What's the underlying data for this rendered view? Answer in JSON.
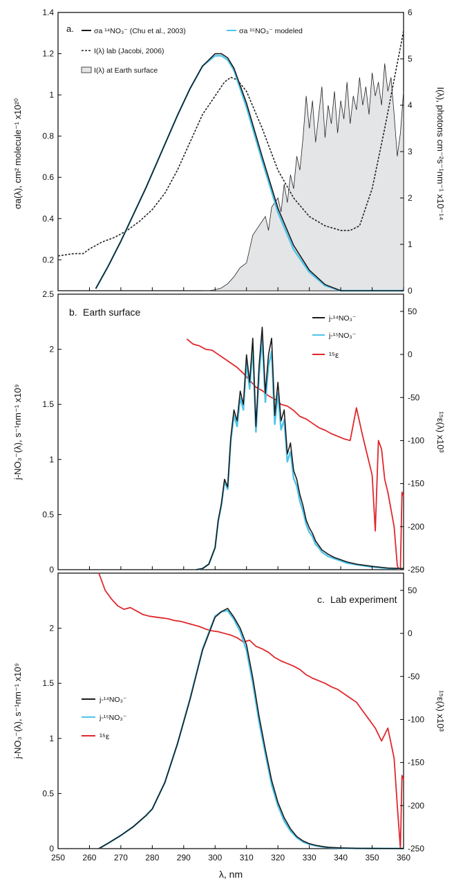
{
  "figure": {
    "xlabel": "λ, nm",
    "xticks": [
      "250",
      "260",
      "270",
      "280",
      "290",
      "300",
      "310",
      "320",
      "330",
      "340",
      "350",
      "360"
    ]
  },
  "colors": {
    "n14": "#1b1b1b",
    "n15": "#4fc3e8",
    "eps": "#e0262b",
    "lab": "#222222",
    "surface_fill": "#e4e5e7"
  },
  "chart_data": [
    {
      "type": "line",
      "panel_label": "a.",
      "xlim": [
        250,
        360
      ],
      "ylim_left": [
        0.05,
        1.4
      ],
      "ylim_right": [
        0,
        6
      ],
      "ylabel_left": "σa(λ), cm² molecule⁻¹ x10²⁰",
      "ylabel_right": "I(λ), photons cm⁻²s⁻¹nm⁻¹ x10⁻¹⁴",
      "yticks_left": [
        "0.2",
        "0.4",
        "0.6",
        "0.8",
        "1",
        "1.2",
        "1.4"
      ],
      "yticks_right": [
        "0",
        "1",
        "2",
        "3",
        "4",
        "5",
        "6"
      ],
      "legend": {
        "sigma14": "σa ¹⁴NO₃⁻ (Chu et al., 2003)",
        "sigma15": "σa ¹⁵NO₃⁻ modeled",
        "ilab": "I(λ) lab (Jacobi, 2006)",
        "isurf": "I(λ) at Earth surface"
      },
      "series": [
        {
          "name": "σa ¹⁴NO₃⁻ (Chu et al., 2003)",
          "axis": "left",
          "x": [
            262,
            266,
            270,
            274,
            278,
            280,
            284,
            288,
            292,
            296,
            300,
            302,
            304,
            306,
            310,
            315,
            320,
            325,
            330,
            335,
            340,
            345,
            350,
            355,
            360
          ],
          "y": [
            0.06,
            0.17,
            0.29,
            0.42,
            0.55,
            0.62,
            0.76,
            0.9,
            1.03,
            1.14,
            1.2,
            1.2,
            1.18,
            1.13,
            0.96,
            0.7,
            0.45,
            0.27,
            0.15,
            0.08,
            0.045,
            0.025,
            0.015,
            0.01,
            0.008
          ]
        },
        {
          "name": "σa ¹⁵NO₃⁻ modeled",
          "axis": "left",
          "x": [
            262,
            266,
            270,
            274,
            278,
            280,
            284,
            288,
            292,
            296,
            300,
            302,
            304,
            306,
            310,
            315,
            320,
            325,
            330,
            335,
            340,
            345,
            350,
            355,
            360
          ],
          "y": [
            0.06,
            0.17,
            0.29,
            0.42,
            0.55,
            0.62,
            0.76,
            0.9,
            1.03,
            1.14,
            1.19,
            1.19,
            1.17,
            1.12,
            0.94,
            0.68,
            0.43,
            0.25,
            0.14,
            0.075,
            0.04,
            0.022,
            0.013,
            0.009,
            0.007
          ]
        },
        {
          "name": "I(λ) lab (Jacobi, 2006)",
          "axis": "right",
          "x": [
            250,
            255,
            258,
            260,
            264,
            268,
            272,
            276,
            280,
            284,
            288,
            292,
            296,
            300,
            303,
            305,
            307,
            310,
            315,
            320,
            325,
            330,
            335,
            340,
            343,
            346,
            350,
            354,
            358,
            360
          ],
          "y": [
            0.75,
            0.8,
            0.8,
            0.9,
            1.05,
            1.15,
            1.3,
            1.5,
            1.75,
            2.1,
            2.6,
            3.2,
            3.8,
            4.2,
            4.5,
            4.6,
            4.55,
            4.3,
            3.5,
            2.6,
            2.0,
            1.6,
            1.4,
            1.3,
            1.3,
            1.4,
            2.2,
            3.5,
            4.9,
            5.6
          ]
        },
        {
          "name": "I(λ) at Earth surface",
          "axis": "right",
          "x": [
            296,
            298,
            300,
            302,
            304,
            306,
            308,
            310,
            312,
            314,
            316,
            317,
            318,
            320,
            321,
            322,
            323,
            324,
            325,
            326,
            327,
            328,
            329,
            330,
            331,
            332,
            333,
            334,
            335,
            336,
            337,
            338,
            339,
            340,
            341,
            342,
            343,
            344,
            345,
            346,
            347,
            348,
            349,
            350,
            351,
            352,
            353,
            354,
            355,
            356,
            357,
            358,
            359,
            360
          ],
          "y": [
            0,
            0,
            0.02,
            0.06,
            0.15,
            0.3,
            0.5,
            0.6,
            1.2,
            1.4,
            1.6,
            1.3,
            1.8,
            2.0,
            1.7,
            2.3,
            1.9,
            2.5,
            2.2,
            2.9,
            2.6,
            3.3,
            4.2,
            3.5,
            4.1,
            3.2,
            3.8,
            4.4,
            3.3,
            4.0,
            3.6,
            4.3,
            3.4,
            4.1,
            3.7,
            4.5,
            3.6,
            4.2,
            3.9,
            4.6,
            4.0,
            4.4,
            3.8,
            4.7,
            4.2,
            4.5,
            4.0,
            4.9,
            4.3,
            4.6,
            3.8,
            2.9,
            3.4,
            4.3
          ]
        }
      ]
    },
    {
      "type": "line",
      "panel_label": "b.",
      "title": "Earth surface",
      "xlim": [
        250,
        360
      ],
      "ylim_left": [
        0,
        2.5
      ],
      "ylim_right": [
        -250,
        70
      ],
      "ylabel_left": "j-NO₃⁻(λ), s⁻¹nm⁻¹ x10⁹",
      "ylabel_right": "¹⁵ε(λ) x10³",
      "yticks_left": [
        "0",
        "0.5",
        "1",
        "1.5",
        "2",
        "2.5"
      ],
      "yticks_right": [
        "50",
        "0",
        "-50",
        "-100",
        "-150",
        "-200",
        "-250"
      ],
      "legend": {
        "j14": "j-¹⁴NO₃⁻",
        "j15": "j-¹⁵NO₃⁻",
        "eps": "¹⁵ε"
      },
      "series": [
        {
          "name": "j-¹⁴NO₃⁻",
          "axis": "left",
          "x": [
            294,
            296,
            298,
            300,
            301,
            302,
            303,
            304,
            305,
            306,
            307,
            308,
            309,
            310,
            311,
            312,
            313,
            314,
            315,
            316,
            317,
            318,
            319,
            320,
            321,
            322,
            323,
            324,
            325,
            326,
            327,
            328,
            329,
            330,
            331,
            332,
            333,
            334,
            335,
            336,
            338,
            340,
            342,
            345,
            350,
            355,
            360
          ],
          "y": [
            0,
            0.01,
            0.05,
            0.2,
            0.45,
            0.6,
            0.82,
            0.75,
            1.2,
            1.45,
            1.35,
            1.62,
            1.5,
            1.95,
            1.7,
            2.1,
            1.3,
            1.85,
            2.2,
            1.6,
            1.95,
            2.1,
            1.4,
            1.7,
            1.35,
            1.45,
            1.05,
            1.15,
            0.9,
            0.82,
            0.68,
            0.58,
            0.45,
            0.38,
            0.33,
            0.26,
            0.22,
            0.18,
            0.16,
            0.14,
            0.11,
            0.09,
            0.07,
            0.05,
            0.03,
            0.015,
            0.01
          ]
        },
        {
          "name": "j-¹⁵NO₃⁻",
          "axis": "left",
          "x": [
            294,
            296,
            298,
            300,
            301,
            302,
            303,
            304,
            305,
            306,
            307,
            308,
            309,
            310,
            311,
            312,
            313,
            314,
            315,
            316,
            317,
            318,
            319,
            320,
            321,
            322,
            323,
            324,
            325,
            326,
            327,
            328,
            329,
            330,
            331,
            332,
            333,
            334,
            335,
            336,
            338,
            340,
            342,
            345,
            350,
            355,
            360
          ],
          "y": [
            0,
            0.01,
            0.05,
            0.2,
            0.44,
            0.58,
            0.8,
            0.73,
            1.17,
            1.4,
            1.3,
            1.56,
            1.45,
            1.88,
            1.64,
            2.02,
            1.25,
            1.76,
            2.1,
            1.52,
            1.85,
            1.98,
            1.32,
            1.6,
            1.27,
            1.36,
            0.98,
            1.07,
            0.83,
            0.76,
            0.62,
            0.53,
            0.41,
            0.34,
            0.3,
            0.23,
            0.2,
            0.16,
            0.14,
            0.12,
            0.1,
            0.08,
            0.06,
            0.045,
            0.025,
            0.012,
            0.008
          ]
        },
        {
          "name": "¹⁵ε",
          "axis": "right",
          "x": [
            291,
            293,
            295,
            297,
            299,
            301,
            303,
            305,
            307,
            309,
            311,
            313,
            315,
            317,
            319,
            321,
            323,
            325,
            327,
            329,
            331,
            333,
            335,
            337,
            339,
            341,
            343,
            345,
            347,
            348,
            350,
            351,
            352,
            353,
            354,
            355,
            356,
            357,
            358,
            358.5,
            359,
            359.5,
            360
          ],
          "y": [
            18,
            12,
            10,
            6,
            5,
            0,
            -5,
            -10,
            -15,
            -22,
            -30,
            -38,
            -42,
            -48,
            -52,
            -58,
            -60,
            -65,
            -72,
            -75,
            -80,
            -85,
            -88,
            -92,
            -95,
            -98,
            -100,
            -62,
            -95,
            -110,
            -140,
            -205,
            -100,
            -110,
            -145,
            -160,
            -180,
            -200,
            -245,
            -250,
            -250,
            -160,
            -165
          ]
        }
      ]
    },
    {
      "type": "line",
      "panel_label": "c.",
      "title": "Lab experiment",
      "xlim": [
        250,
        360
      ],
      "ylim_left": [
        0,
        2.5
      ],
      "ylim_right": [
        -250,
        70
      ],
      "ylabel_left": "j-NO₃⁻(λ), s⁻¹nm⁻¹ x10⁹",
      "ylabel_right": "¹⁵ε(λ) x10³",
      "yticks_left": [
        "0",
        "0.5",
        "1",
        "1.5",
        "2"
      ],
      "yticks_right": [
        "50",
        "0",
        "-50",
        "-100",
        "-150",
        "-200",
        "-250"
      ],
      "legend": {
        "j14": "j-¹⁴NO₃⁻",
        "j15": "j-¹⁵NO₃⁻",
        "eps": "¹⁵ε"
      },
      "series": [
        {
          "name": "j-¹⁴NO₃⁻",
          "axis": "left",
          "x": [
            263,
            266,
            270,
            274,
            278,
            280,
            284,
            288,
            292,
            296,
            300,
            302,
            304,
            306,
            308,
            310,
            312,
            314,
            316,
            318,
            320,
            322,
            324,
            326,
            328,
            330,
            332,
            334,
            336,
            340,
            345,
            350,
            355,
            360
          ],
          "y": [
            0,
            0.05,
            0.12,
            0.2,
            0.3,
            0.36,
            0.6,
            0.95,
            1.35,
            1.8,
            2.1,
            2.15,
            2.18,
            2.1,
            2.0,
            1.85,
            1.55,
            1.2,
            0.9,
            0.62,
            0.42,
            0.28,
            0.18,
            0.11,
            0.07,
            0.045,
            0.03,
            0.02,
            0.012,
            0.006,
            0.003,
            0.002,
            0.001,
            0.001
          ]
        },
        {
          "name": "j-¹⁵NO₃⁻",
          "axis": "left",
          "x": [
            263,
            266,
            270,
            274,
            278,
            280,
            284,
            288,
            292,
            296,
            300,
            302,
            304,
            306,
            308,
            310,
            312,
            314,
            316,
            318,
            320,
            322,
            324,
            326,
            328,
            330,
            332,
            334,
            336,
            340,
            345,
            350,
            355,
            360
          ],
          "y": [
            0,
            0.05,
            0.12,
            0.2,
            0.3,
            0.36,
            0.6,
            0.95,
            1.36,
            1.81,
            2.11,
            2.15,
            2.16,
            2.08,
            1.97,
            1.8,
            1.5,
            1.15,
            0.86,
            0.58,
            0.39,
            0.25,
            0.16,
            0.1,
            0.06,
            0.04,
            0.026,
            0.017,
            0.01,
            0.005,
            0.002,
            0.0015,
            0.001,
            0.001
          ]
        },
        {
          "name": "¹⁵ε",
          "axis": "right",
          "x": [
            263,
            265,
            267,
            269,
            271,
            273,
            275,
            277,
            279,
            281,
            283,
            285,
            287,
            289,
            291,
            293,
            295,
            297,
            299,
            301,
            303,
            305,
            307,
            309,
            311,
            313,
            315,
            317,
            319,
            321,
            323,
            325,
            327,
            329,
            331,
            333,
            335,
            337,
            339,
            341,
            343,
            345,
            347,
            349,
            351,
            353,
            355,
            357,
            358,
            359,
            359.5,
            360
          ],
          "y": [
            70,
            50,
            40,
            32,
            28,
            30,
            26,
            22,
            20,
            19,
            18,
            17,
            15,
            14,
            12,
            10,
            8,
            5,
            3,
            2,
            0,
            -2,
            -5,
            -10,
            -8,
            -15,
            -18,
            -22,
            -28,
            -32,
            -35,
            -38,
            -42,
            -48,
            -52,
            -55,
            -58,
            -62,
            -65,
            -70,
            -75,
            -80,
            -90,
            -100,
            -110,
            -125,
            -110,
            -145,
            -200,
            -250,
            -165,
            -170
          ]
        }
      ]
    }
  ]
}
